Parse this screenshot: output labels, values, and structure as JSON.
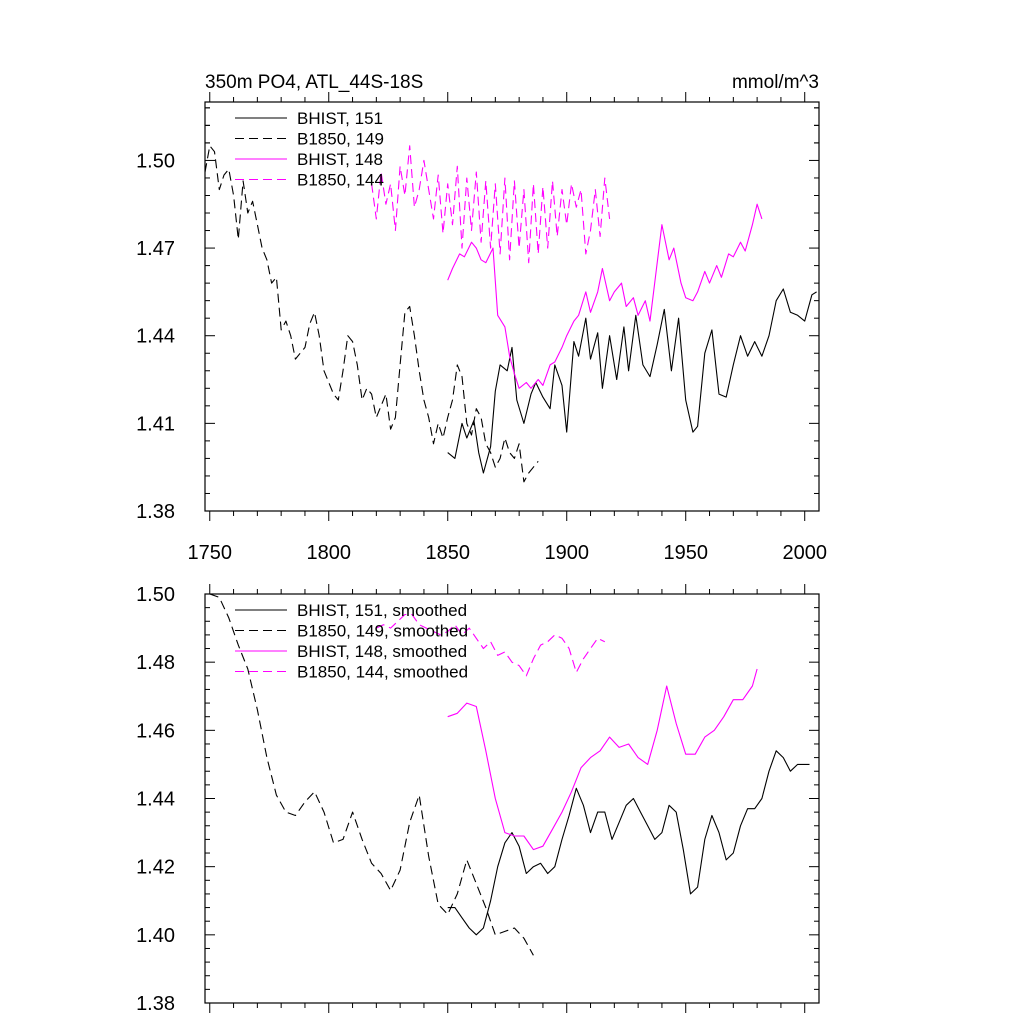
{
  "chart_data": [
    {
      "type": "line",
      "title": "350m PO4, ATL_44S-18S",
      "units": "mmol/m^3",
      "xlim": [
        1748,
        2006
      ],
      "ylim": [
        1.38,
        1.52
      ],
      "x_ticks": [
        1750,
        1800,
        1850,
        1900,
        1950,
        2000
      ],
      "y_ticks": [
        1.38,
        1.41,
        1.44,
        1.47,
        1.5
      ],
      "y_tick_labels": [
        "1.38",
        "1.41",
        "1.44",
        "1.47",
        "1.50"
      ],
      "legend_position": "top-left",
      "series": [
        {
          "name": "BHIST, 151",
          "color": "#000000",
          "dash": "solid",
          "x": [
            1850,
            1853,
            1856,
            1858,
            1861,
            1863,
            1865,
            1868,
            1870,
            1872,
            1875,
            1877,
            1879,
            1882,
            1885,
            1887,
            1890,
            1893,
            1895,
            1898,
            1900,
            1903,
            1905,
            1908,
            1910,
            1913,
            1915,
            1918,
            1921,
            1924,
            1926,
            1929,
            1932,
            1935,
            1938,
            1941,
            1944,
            1947,
            1950,
            1953,
            1955,
            1958,
            1961,
            1964,
            1967,
            1970,
            1973,
            1976,
            1979,
            1982,
            1985,
            1988,
            1991,
            1994,
            1997,
            2000,
            2003,
            2005
          ],
          "y": [
            1.4,
            1.398,
            1.41,
            1.405,
            1.411,
            1.4,
            1.393,
            1.402,
            1.421,
            1.43,
            1.428,
            1.436,
            1.418,
            1.41,
            1.42,
            1.424,
            1.419,
            1.415,
            1.43,
            1.423,
            1.407,
            1.438,
            1.433,
            1.446,
            1.432,
            1.441,
            1.422,
            1.44,
            1.425,
            1.443,
            1.428,
            1.447,
            1.43,
            1.426,
            1.437,
            1.449,
            1.428,
            1.446,
            1.418,
            1.407,
            1.409,
            1.434,
            1.442,
            1.42,
            1.419,
            1.43,
            1.44,
            1.433,
            1.438,
            1.433,
            1.44,
            1.452,
            1.456,
            1.448,
            1.447,
            1.445,
            1.454,
            1.455
          ]
        },
        {
          "name": "B1850, 149",
          "color": "#000000",
          "dash": "dashed",
          "x": [
            1748,
            1750,
            1752,
            1754,
            1756,
            1758,
            1760,
            1762,
            1764,
            1766,
            1768,
            1770,
            1772,
            1774,
            1776,
            1778,
            1780,
            1782,
            1784,
            1786,
            1788,
            1790,
            1792,
            1794,
            1796,
            1798,
            1800,
            1802,
            1804,
            1806,
            1808,
            1810,
            1812,
            1814,
            1816,
            1818,
            1820,
            1822,
            1824,
            1826,
            1828,
            1830,
            1832,
            1834,
            1836,
            1838,
            1840,
            1842,
            1844,
            1846,
            1848,
            1850,
            1852,
            1854,
            1856,
            1858,
            1860,
            1862,
            1864,
            1866,
            1868,
            1870,
            1872,
            1874,
            1876,
            1878,
            1880,
            1882,
            1884,
            1886,
            1888
          ],
          "y": [
            1.496,
            1.505,
            1.503,
            1.49,
            1.495,
            1.497,
            1.488,
            1.473,
            1.493,
            1.482,
            1.486,
            1.478,
            1.47,
            1.466,
            1.458,
            1.46,
            1.442,
            1.445,
            1.44,
            1.432,
            1.434,
            1.436,
            1.444,
            1.448,
            1.44,
            1.428,
            1.424,
            1.42,
            1.418,
            1.428,
            1.44,
            1.438,
            1.43,
            1.418,
            1.422,
            1.42,
            1.412,
            1.416,
            1.42,
            1.408,
            1.412,
            1.43,
            1.448,
            1.45,
            1.44,
            1.428,
            1.418,
            1.412,
            1.403,
            1.41,
            1.405,
            1.412,
            1.418,
            1.43,
            1.426,
            1.41,
            1.406,
            1.415,
            1.412,
            1.403,
            1.4,
            1.395,
            1.398,
            1.405,
            1.4,
            1.398,
            1.403,
            1.39,
            1.393,
            1.395,
            1.397
          ]
        },
        {
          "name": "BHIST, 148",
          "color": "#ff00ff",
          "dash": "solid",
          "x": [
            1850,
            1852,
            1855,
            1857,
            1860,
            1862,
            1864,
            1866,
            1869,
            1871,
            1874,
            1876,
            1878,
            1880,
            1883,
            1885,
            1888,
            1890,
            1893,
            1895,
            1898,
            1900,
            1903,
            1905,
            1908,
            1910,
            1913,
            1915,
            1918,
            1920,
            1923,
            1925,
            1928,
            1930,
            1933,
            1935,
            1938,
            1940,
            1943,
            1945,
            1948,
            1950,
            1953,
            1955,
            1958,
            1960,
            1963,
            1965,
            1968,
            1970,
            1973,
            1975,
            1978,
            1980,
            1982
          ],
          "y": [
            1.459,
            1.463,
            1.468,
            1.467,
            1.472,
            1.47,
            1.466,
            1.465,
            1.47,
            1.447,
            1.443,
            1.433,
            1.427,
            1.422,
            1.424,
            1.422,
            1.425,
            1.423,
            1.43,
            1.431,
            1.436,
            1.44,
            1.445,
            1.447,
            1.455,
            1.448,
            1.455,
            1.463,
            1.452,
            1.455,
            1.458,
            1.45,
            1.453,
            1.447,
            1.452,
            1.445,
            1.465,
            1.478,
            1.466,
            1.47,
            1.458,
            1.453,
            1.452,
            1.455,
            1.462,
            1.458,
            1.464,
            1.46,
            1.468,
            1.467,
            1.472,
            1.469,
            1.478,
            1.485,
            1.48
          ]
        },
        {
          "name": "B1850, 144",
          "color": "#ff00ff",
          "dash": "dashed",
          "x": [
            1818,
            1820,
            1822,
            1824,
            1826,
            1828,
            1830,
            1832,
            1834,
            1836,
            1838,
            1840,
            1842,
            1844,
            1846,
            1848,
            1850,
            1852,
            1854,
            1856,
            1858,
            1860,
            1862,
            1864,
            1866,
            1868,
            1870,
            1872,
            1874,
            1876,
            1878,
            1880,
            1882,
            1884,
            1886,
            1888,
            1890,
            1892,
            1894,
            1896,
            1898,
            1900,
            1902,
            1904,
            1906,
            1908,
            1910,
            1912,
            1914,
            1916,
            1918
          ],
          "y": [
            1.492,
            1.48,
            1.496,
            1.485,
            1.492,
            1.476,
            1.498,
            1.488,
            1.505,
            1.484,
            1.49,
            1.5,
            1.49,
            1.48,
            1.495,
            1.475,
            1.492,
            1.478,
            1.498,
            1.47,
            1.494,
            1.476,
            1.496,
            1.472,
            1.493,
            1.47,
            1.492,
            1.468,
            1.494,
            1.466,
            1.493,
            1.47,
            1.49,
            1.465,
            1.492,
            1.468,
            1.491,
            1.47,
            1.493,
            1.474,
            1.49,
            1.478,
            1.492,
            1.484,
            1.49,
            1.468,
            1.476,
            1.49,
            1.474,
            1.494,
            1.48
          ]
        }
      ]
    },
    {
      "type": "line",
      "xlim": [
        1748,
        2006
      ],
      "ylim": [
        1.38,
        1.5
      ],
      "y_ticks": [
        1.38,
        1.4,
        1.42,
        1.44,
        1.46,
        1.48,
        1.5
      ],
      "y_tick_labels": [
        "1.38",
        "1.40",
        "1.42",
        "1.44",
        "1.46",
        "1.48",
        "1.50"
      ],
      "legend_position": "top-left",
      "series": [
        {
          "name": "BHIST, 151, smoothed",
          "color": "#000000",
          "dash": "solid",
          "x": [
            1850,
            1853,
            1856,
            1859,
            1862,
            1865,
            1868,
            1871,
            1874,
            1877,
            1880,
            1883,
            1886,
            1889,
            1892,
            1895,
            1898,
            1901,
            1904,
            1907,
            1910,
            1913,
            1916,
            1919,
            1922,
            1925,
            1928,
            1931,
            1934,
            1937,
            1940,
            1943,
            1946,
            1949,
            1952,
            1955,
            1958,
            1961,
            1964,
            1967,
            1970,
            1973,
            1976,
            1979,
            1982,
            1985,
            1988,
            1991,
            1994,
            1997,
            2000,
            2002
          ],
          "y": [
            1.408,
            1.408,
            1.405,
            1.402,
            1.4,
            1.402,
            1.41,
            1.42,
            1.427,
            1.43,
            1.426,
            1.418,
            1.42,
            1.421,
            1.418,
            1.42,
            1.428,
            1.435,
            1.443,
            1.438,
            1.43,
            1.436,
            1.436,
            1.428,
            1.433,
            1.438,
            1.44,
            1.436,
            1.432,
            1.428,
            1.43,
            1.438,
            1.436,
            1.425,
            1.412,
            1.414,
            1.428,
            1.435,
            1.43,
            1.422,
            1.424,
            1.432,
            1.437,
            1.437,
            1.44,
            1.448,
            1.454,
            1.452,
            1.448,
            1.45,
            1.45,
            1.45
          ]
        },
        {
          "name": "B1850, 149, smoothed",
          "color": "#000000",
          "dash": "dashed",
          "x": [
            1750,
            1754,
            1758,
            1762,
            1766,
            1770,
            1774,
            1778,
            1782,
            1786,
            1790,
            1794,
            1798,
            1802,
            1806,
            1810,
            1814,
            1818,
            1822,
            1826,
            1830,
            1834,
            1838,
            1842,
            1846,
            1850,
            1854,
            1858,
            1862,
            1866,
            1870,
            1874,
            1878,
            1882,
            1886
          ],
          "y": [
            1.5,
            1.499,
            1.493,
            1.485,
            1.478,
            1.466,
            1.452,
            1.441,
            1.436,
            1.435,
            1.439,
            1.442,
            1.436,
            1.427,
            1.428,
            1.436,
            1.428,
            1.421,
            1.418,
            1.413,
            1.419,
            1.433,
            1.441,
            1.423,
            1.409,
            1.406,
            1.412,
            1.422,
            1.415,
            1.408,
            1.4,
            1.401,
            1.402,
            1.399,
            1.394
          ]
        },
        {
          "name": "BHIST, 148, smoothed",
          "color": "#ff00ff",
          "dash": "solid",
          "x": [
            1850,
            1854,
            1858,
            1862,
            1866,
            1870,
            1874,
            1878,
            1882,
            1886,
            1890,
            1894,
            1898,
            1902,
            1906,
            1910,
            1914,
            1918,
            1922,
            1926,
            1930,
            1934,
            1938,
            1942,
            1946,
            1950,
            1954,
            1958,
            1962,
            1966,
            1970,
            1974,
            1978,
            1980
          ],
          "y": [
            1.464,
            1.465,
            1.468,
            1.467,
            1.454,
            1.44,
            1.43,
            1.429,
            1.429,
            1.425,
            1.426,
            1.431,
            1.436,
            1.442,
            1.449,
            1.452,
            1.454,
            1.458,
            1.455,
            1.456,
            1.452,
            1.45,
            1.46,
            1.473,
            1.462,
            1.453,
            1.453,
            1.458,
            1.46,
            1.464,
            1.469,
            1.469,
            1.473,
            1.478
          ]
        },
        {
          "name": "B1850, 144, smoothed",
          "color": "#ff00ff",
          "dash": "dashed",
          "x": [
            1820,
            1823,
            1826,
            1829,
            1832,
            1835,
            1838,
            1841,
            1844,
            1847,
            1850,
            1853,
            1856,
            1859,
            1862,
            1865,
            1868,
            1871,
            1874,
            1877,
            1880,
            1883,
            1886,
            1889,
            1892,
            1895,
            1898,
            1901,
            1904,
            1907,
            1910,
            1913,
            1916
          ],
          "y": [
            1.49,
            1.491,
            1.49,
            1.492,
            1.494,
            1.494,
            1.491,
            1.49,
            1.489,
            1.488,
            1.489,
            1.491,
            1.488,
            1.49,
            1.487,
            1.484,
            1.486,
            1.482,
            1.483,
            1.48,
            1.479,
            1.476,
            1.481,
            1.485,
            1.486,
            1.488,
            1.487,
            1.484,
            1.477,
            1.481,
            1.484,
            1.487,
            1.486
          ]
        }
      ]
    }
  ]
}
